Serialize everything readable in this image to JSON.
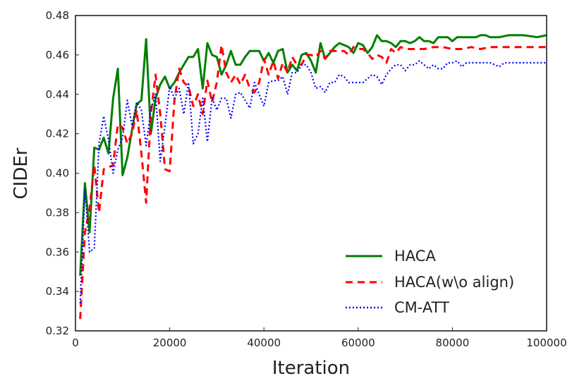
{
  "chart_data": {
    "type": "line",
    "title": "",
    "xlabel": "Iteration",
    "ylabel": "CIDEr",
    "xlim": [
      0,
      100000
    ],
    "ylim": [
      0.32,
      0.48
    ],
    "x_ticks": [
      0,
      20000,
      40000,
      60000,
      80000,
      100000
    ],
    "x_tick_labels": [
      "0",
      "20000",
      "40000",
      "60000",
      "80000",
      "100000"
    ],
    "y_ticks": [
      0.32,
      0.34,
      0.36,
      0.38,
      0.4,
      0.42,
      0.44,
      0.46,
      0.48
    ],
    "y_tick_labels": [
      "0.32",
      "0.34",
      "0.36",
      "0.38",
      "0.40",
      "0.42",
      "0.44",
      "0.46",
      "0.48"
    ],
    "grid": false,
    "legend_position": "lower-right",
    "series": [
      {
        "name": "HACA",
        "color": "#007f00",
        "dash": "solid",
        "points": [
          [
            1000,
            0.348
          ],
          [
            2000,
            0.395
          ],
          [
            3000,
            0.37
          ],
          [
            4000,
            0.413
          ],
          [
            5000,
            0.412
          ],
          [
            6000,
            0.418
          ],
          [
            7000,
            0.41
          ],
          [
            8000,
            0.438
          ],
          [
            9000,
            0.453
          ],
          [
            10000,
            0.399
          ],
          [
            11000,
            0.408
          ],
          [
            12000,
            0.422
          ],
          [
            13000,
            0.435
          ],
          [
            14000,
            0.437
          ],
          [
            15000,
            0.468
          ],
          [
            16000,
            0.42
          ],
          [
            17000,
            0.438
          ],
          [
            18000,
            0.445
          ],
          [
            19000,
            0.449
          ],
          [
            20000,
            0.443
          ],
          [
            21000,
            0.446
          ],
          [
            22000,
            0.451
          ],
          [
            23000,
            0.455
          ],
          [
            24000,
            0.459
          ],
          [
            25000,
            0.459
          ],
          [
            26000,
            0.463
          ],
          [
            27000,
            0.443
          ],
          [
            28000,
            0.466
          ],
          [
            29000,
            0.46
          ],
          [
            30000,
            0.459
          ],
          [
            31000,
            0.45
          ],
          [
            32000,
            0.455
          ],
          [
            33000,
            0.462
          ],
          [
            34000,
            0.455
          ],
          [
            35000,
            0.455
          ],
          [
            36000,
            0.459
          ],
          [
            37000,
            0.462
          ],
          [
            38000,
            0.462
          ],
          [
            39000,
            0.462
          ],
          [
            40000,
            0.457
          ],
          [
            41000,
            0.461
          ],
          [
            42000,
            0.456
          ],
          [
            43000,
            0.462
          ],
          [
            44000,
            0.463
          ],
          [
            45000,
            0.451
          ],
          [
            46000,
            0.455
          ],
          [
            47000,
            0.452
          ],
          [
            48000,
            0.46
          ],
          [
            49000,
            0.461
          ],
          [
            50000,
            0.457
          ],
          [
            51000,
            0.451
          ],
          [
            52000,
            0.466
          ],
          [
            53000,
            0.458
          ],
          [
            54000,
            0.461
          ],
          [
            55000,
            0.464
          ],
          [
            56000,
            0.466
          ],
          [
            57000,
            0.465
          ],
          [
            58000,
            0.464
          ],
          [
            59000,
            0.461
          ],
          [
            60000,
            0.466
          ],
          [
            61000,
            0.465
          ],
          [
            62000,
            0.461
          ],
          [
            63000,
            0.464
          ],
          [
            64000,
            0.47
          ],
          [
            65000,
            0.467
          ],
          [
            66000,
            0.467
          ],
          [
            67000,
            0.466
          ],
          [
            68000,
            0.464
          ],
          [
            69000,
            0.467
          ],
          [
            70000,
            0.467
          ],
          [
            71000,
            0.466
          ],
          [
            72000,
            0.467
          ],
          [
            73000,
            0.469
          ],
          [
            74000,
            0.467
          ],
          [
            75000,
            0.467
          ],
          [
            76000,
            0.466
          ],
          [
            77000,
            0.469
          ],
          [
            78000,
            0.469
          ],
          [
            79000,
            0.469
          ],
          [
            80000,
            0.467
          ],
          [
            81000,
            0.469
          ],
          [
            82000,
            0.469
          ],
          [
            83000,
            0.469
          ],
          [
            84000,
            0.469
          ],
          [
            85000,
            0.469
          ],
          [
            86000,
            0.47
          ],
          [
            87000,
            0.47
          ],
          [
            88000,
            0.469
          ],
          [
            90000,
            0.469
          ],
          [
            92000,
            0.47
          ],
          [
            95000,
            0.47
          ],
          [
            98000,
            0.469
          ],
          [
            100000,
            0.47
          ]
        ]
      },
      {
        "name": "HACA(w\\o align)",
        "color": "#ff0000",
        "dash": "dashed",
        "points": [
          [
            1000,
            0.326
          ],
          [
            2000,
            0.37
          ],
          [
            3000,
            0.382
          ],
          [
            4000,
            0.404
          ],
          [
            5000,
            0.38
          ],
          [
            6000,
            0.402
          ],
          [
            7000,
            0.403
          ],
          [
            8000,
            0.404
          ],
          [
            9000,
            0.425
          ],
          [
            10000,
            0.423
          ],
          [
            11000,
            0.415
          ],
          [
            12000,
            0.42
          ],
          [
            13000,
            0.432
          ],
          [
            14000,
            0.41
          ],
          [
            15000,
            0.385
          ],
          [
            16000,
            0.43
          ],
          [
            17000,
            0.45
          ],
          [
            18000,
            0.43
          ],
          [
            19000,
            0.402
          ],
          [
            20000,
            0.401
          ],
          [
            21000,
            0.437
          ],
          [
            22000,
            0.453
          ],
          [
            23000,
            0.446
          ],
          [
            24000,
            0.444
          ],
          [
            25000,
            0.434
          ],
          [
            26000,
            0.44
          ],
          [
            27000,
            0.43
          ],
          [
            28000,
            0.447
          ],
          [
            29000,
            0.436
          ],
          [
            30000,
            0.446
          ],
          [
            31000,
            0.465
          ],
          [
            32000,
            0.451
          ],
          [
            33000,
            0.446
          ],
          [
            34000,
            0.45
          ],
          [
            35000,
            0.445
          ],
          [
            36000,
            0.45
          ],
          [
            37000,
            0.443
          ],
          [
            38000,
            0.441
          ],
          [
            39000,
            0.446
          ],
          [
            40000,
            0.458
          ],
          [
            41000,
            0.45
          ],
          [
            42000,
            0.457
          ],
          [
            43000,
            0.448
          ],
          [
            44000,
            0.456
          ],
          [
            45000,
            0.451
          ],
          [
            46000,
            0.459
          ],
          [
            47000,
            0.455
          ],
          [
            48000,
            0.455
          ],
          [
            49000,
            0.46
          ],
          [
            50000,
            0.46
          ],
          [
            51000,
            0.459
          ],
          [
            52000,
            0.462
          ],
          [
            53000,
            0.458
          ],
          [
            54000,
            0.462
          ],
          [
            55000,
            0.462
          ],
          [
            56000,
            0.462
          ],
          [
            57000,
            0.462
          ],
          [
            58000,
            0.46
          ],
          [
            59000,
            0.464
          ],
          [
            60000,
            0.463
          ],
          [
            61000,
            0.463
          ],
          [
            62000,
            0.461
          ],
          [
            63000,
            0.458
          ],
          [
            64000,
            0.46
          ],
          [
            65000,
            0.459
          ],
          [
            66000,
            0.456
          ],
          [
            67000,
            0.463
          ],
          [
            68000,
            0.461
          ],
          [
            69000,
            0.464
          ],
          [
            70000,
            0.463
          ],
          [
            72000,
            0.463
          ],
          [
            74000,
            0.463
          ],
          [
            76000,
            0.464
          ],
          [
            78000,
            0.464
          ],
          [
            80000,
            0.463
          ],
          [
            82000,
            0.463
          ],
          [
            84000,
            0.464
          ],
          [
            86000,
            0.463
          ],
          [
            88000,
            0.464
          ],
          [
            90000,
            0.464
          ],
          [
            92000,
            0.464
          ],
          [
            94000,
            0.464
          ],
          [
            96000,
            0.464
          ],
          [
            98000,
            0.464
          ],
          [
            100000,
            0.464
          ]
        ]
      },
      {
        "name": "CM-ATT",
        "color": "#0000ff",
        "dash": "dotted",
        "points": [
          [
            1000,
            0.334
          ],
          [
            2000,
            0.392
          ],
          [
            3000,
            0.36
          ],
          [
            4000,
            0.362
          ],
          [
            5000,
            0.415
          ],
          [
            6000,
            0.429
          ],
          [
            7000,
            0.417
          ],
          [
            8000,
            0.4
          ],
          [
            9000,
            0.412
          ],
          [
            10000,
            0.418
          ],
          [
            11000,
            0.437
          ],
          [
            12000,
            0.424
          ],
          [
            13000,
            0.436
          ],
          [
            14000,
            0.432
          ],
          [
            15000,
            0.414
          ],
          [
            16000,
            0.432
          ],
          [
            17000,
            0.44
          ],
          [
            18000,
            0.406
          ],
          [
            19000,
            0.424
          ],
          [
            20000,
            0.444
          ],
          [
            21000,
            0.438
          ],
          [
            22000,
            0.443
          ],
          [
            23000,
            0.43
          ],
          [
            24000,
            0.446
          ],
          [
            25000,
            0.415
          ],
          [
            26000,
            0.42
          ],
          [
            27000,
            0.438
          ],
          [
            28000,
            0.416
          ],
          [
            29000,
            0.438
          ],
          [
            30000,
            0.432
          ],
          [
            31000,
            0.438
          ],
          [
            32000,
            0.438
          ],
          [
            33000,
            0.428
          ],
          [
            34000,
            0.44
          ],
          [
            35000,
            0.441
          ],
          [
            36000,
            0.437
          ],
          [
            37000,
            0.433
          ],
          [
            38000,
            0.446
          ],
          [
            39000,
            0.44
          ],
          [
            40000,
            0.434
          ],
          [
            41000,
            0.446
          ],
          [
            42000,
            0.447
          ],
          [
            43000,
            0.447
          ],
          [
            44000,
            0.449
          ],
          [
            45000,
            0.44
          ],
          [
            46000,
            0.451
          ],
          [
            47000,
            0.451
          ],
          [
            48000,
            0.455
          ],
          [
            49000,
            0.455
          ],
          [
            50000,
            0.451
          ],
          [
            51000,
            0.443
          ],
          [
            52000,
            0.444
          ],
          [
            53000,
            0.441
          ],
          [
            54000,
            0.446
          ],
          [
            55000,
            0.446
          ],
          [
            56000,
            0.45
          ],
          [
            57000,
            0.449
          ],
          [
            58000,
            0.446
          ],
          [
            59000,
            0.446
          ],
          [
            60000,
            0.446
          ],
          [
            61000,
            0.446
          ],
          [
            62000,
            0.448
          ],
          [
            63000,
            0.45
          ],
          [
            64000,
            0.449
          ],
          [
            65000,
            0.445
          ],
          [
            66000,
            0.45
          ],
          [
            67000,
            0.453
          ],
          [
            68000,
            0.455
          ],
          [
            69000,
            0.455
          ],
          [
            70000,
            0.452
          ],
          [
            71000,
            0.455
          ],
          [
            72000,
            0.455
          ],
          [
            73000,
            0.457
          ],
          [
            74000,
            0.455
          ],
          [
            75000,
            0.453
          ],
          [
            76000,
            0.455
          ],
          [
            77000,
            0.453
          ],
          [
            78000,
            0.453
          ],
          [
            79000,
            0.456
          ],
          [
            80000,
            0.456
          ],
          [
            81000,
            0.457
          ],
          [
            82000,
            0.454
          ],
          [
            83000,
            0.456
          ],
          [
            84000,
            0.456
          ],
          [
            85000,
            0.456
          ],
          [
            86000,
            0.456
          ],
          [
            87000,
            0.456
          ],
          [
            88000,
            0.456
          ],
          [
            89000,
            0.455
          ],
          [
            90000,
            0.454
          ],
          [
            91000,
            0.456
          ],
          [
            92000,
            0.456
          ],
          [
            94000,
            0.456
          ],
          [
            96000,
            0.456
          ],
          [
            98000,
            0.456
          ],
          [
            100000,
            0.456
          ]
        ]
      }
    ]
  }
}
